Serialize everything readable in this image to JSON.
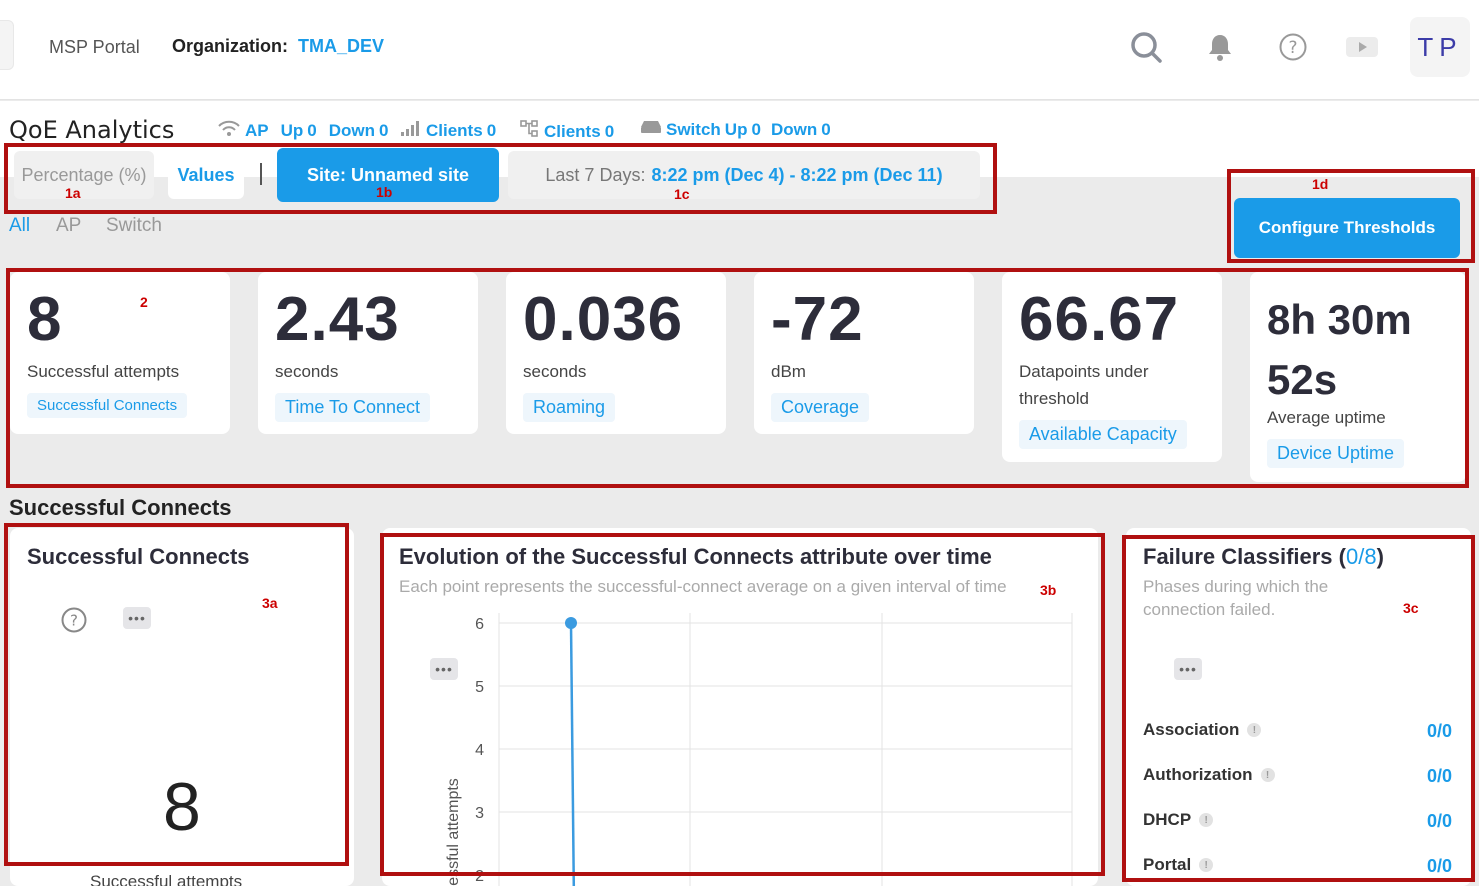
{
  "header": {
    "brand": "MSP Portal",
    "org_label": "Organization:",
    "org_value": "TMA_DEV",
    "avatar_initials": "TP",
    "icons": [
      "search-icon",
      "bell-icon",
      "help-icon",
      "video-icon"
    ]
  },
  "page": {
    "title": "QoE Analytics",
    "stats": {
      "ap_label": "AP",
      "ap_up_label": "Up",
      "ap_up": "0",
      "ap_down_label": "Down",
      "ap_down": "0",
      "clients1_label": "Clients",
      "clients1": "0",
      "clients2_label": "Clients",
      "clients2": "0",
      "switch_label": "Switch",
      "switch_up_label": "Up",
      "switch_up": "0",
      "switch_down_label": "Down",
      "switch_down": "0"
    }
  },
  "filters": {
    "percentage": "Percentage (%)",
    "values": "Values",
    "site": "Site: Unnamed site",
    "range_label": "Last 7 Days:",
    "range_value": "8:22 pm (Dec 4) - 8:22 pm (Dec 11)",
    "configure": "Configure Thresholds"
  },
  "device_tabs": [
    "All",
    "AP",
    "Switch"
  ],
  "metrics": [
    {
      "value": "8",
      "unit": "Successful attempts",
      "tag": "Successful Connects"
    },
    {
      "value": "2.43",
      "unit": "seconds",
      "tag": "Time To Connect"
    },
    {
      "value": "0.036",
      "unit": "seconds",
      "tag": "Roaming"
    },
    {
      "value": "-72",
      "unit": "dBm",
      "tag": "Coverage"
    },
    {
      "value": "66.67",
      "unit": "Datapoints under threshold",
      "tag": "Available Capacity"
    },
    {
      "value": "8h 30m 52s",
      "value_line1": "8h 30m",
      "value_line2": "52s",
      "unit": "Average uptime",
      "tag": "Device Uptime"
    }
  ],
  "section": {
    "title": "Successful Connects"
  },
  "panel_a": {
    "title": "Successful Connects",
    "big_value": "8",
    "footer": "Successful attempts"
  },
  "panel_b": {
    "title": "Evolution of the Successful Connects attribute over time",
    "subtitle": "Each point represents the successful-connect average on a given interval of time"
  },
  "chart_data": {
    "type": "line",
    "ylabel": "Successful attempts",
    "y_ticks": [
      "6",
      "5",
      "4",
      "3",
      "2"
    ],
    "ylim": [
      2,
      6
    ],
    "series": [
      {
        "values": [
          6,
          2
        ]
      }
    ],
    "grid": true,
    "color": "#3b9be0"
  },
  "panel_c": {
    "title": "Failure Classifiers (",
    "count": "0/8",
    "close": ")",
    "subtitle_l1": "Phases during which the",
    "subtitle_l2": "connection failed.",
    "rows": [
      {
        "label": "Association",
        "value": "0/0"
      },
      {
        "label": "Authorization",
        "value": "0/0"
      },
      {
        "label": "DHCP",
        "value": "0/0"
      },
      {
        "label": "Portal",
        "value": "0/0"
      }
    ]
  },
  "annotations": {
    "a1": "1a",
    "b1": "1b",
    "c1": "1c",
    "d1": "1d",
    "a2": "2",
    "a3": "3a",
    "b3": "3b",
    "c3": "3c",
    "color": "#b01010"
  }
}
